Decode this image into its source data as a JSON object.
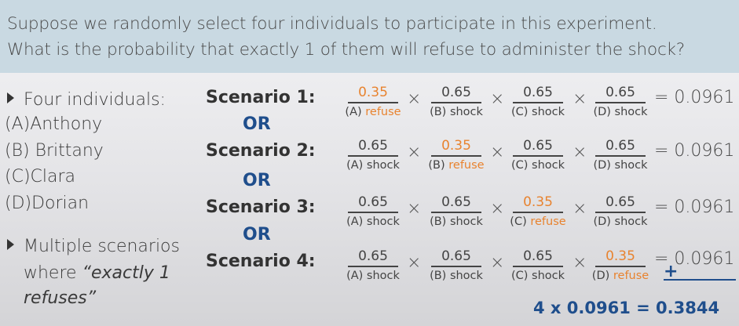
{
  "question": {
    "line1": "Suppose we randomly select four individuals to participate in this experiment.",
    "line2": "What is the probability that exactly 1 of them will refuse to administer the shock?"
  },
  "left": {
    "bullet1": "Four individuals:",
    "people": [
      "(A)Anthony",
      "(B) Brittany",
      "(C)Clara",
      "(D)Dorian"
    ],
    "bullet2_line1": "Multiple scenarios",
    "bullet2_line2_prefix": "where ",
    "bullet2_line2_italic": "“exactly 1",
    "bullet2_line3_italic": "refuses”"
  },
  "or_label": "OR",
  "times_symbol": "×",
  "scenarios": [
    {
      "label": "Scenario 1:",
      "terms": [
        {
          "num": "0.35",
          "den_letter": "(A)",
          "den_word": "refuse",
          "refuse": true
        },
        {
          "num": "0.65",
          "den_letter": "(B)",
          "den_word": "shock",
          "refuse": false
        },
        {
          "num": "0.65",
          "den_letter": "(C)",
          "den_word": "shock",
          "refuse": false
        },
        {
          "num": "0.65",
          "den_letter": "(D)",
          "den_word": "shock",
          "refuse": false
        }
      ],
      "result": "= 0.0961"
    },
    {
      "label": "Scenario 2:",
      "terms": [
        {
          "num": "0.65",
          "den_letter": "(A)",
          "den_word": "shock",
          "refuse": false
        },
        {
          "num": "0.35",
          "den_letter": "(B)",
          "den_word": "refuse",
          "refuse": true
        },
        {
          "num": "0.65",
          "den_letter": "(C)",
          "den_word": "shock",
          "refuse": false
        },
        {
          "num": "0.65",
          "den_letter": "(D)",
          "den_word": "shock",
          "refuse": false
        }
      ],
      "result": "= 0.0961"
    },
    {
      "label": "Scenario 3:",
      "terms": [
        {
          "num": "0.65",
          "den_letter": "(A)",
          "den_word": "shock",
          "refuse": false
        },
        {
          "num": "0.65",
          "den_letter": "(B)",
          "den_word": "shock",
          "refuse": false
        },
        {
          "num": "0.35",
          "den_letter": "(C)",
          "den_word": "refuse",
          "refuse": true
        },
        {
          "num": "0.65",
          "den_letter": "(D)",
          "den_word": "shock",
          "refuse": false
        }
      ],
      "result": "= 0.0961"
    },
    {
      "label": "Scenario 4:",
      "terms": [
        {
          "num": "0.65",
          "den_letter": "(A)",
          "den_word": "shock",
          "refuse": false
        },
        {
          "num": "0.65",
          "den_letter": "(B)",
          "den_word": "shock",
          "refuse": false
        },
        {
          "num": "0.65",
          "den_letter": "(C)",
          "den_word": "shock",
          "refuse": false
        },
        {
          "num": "0.35",
          "den_letter": "(D)",
          "den_word": "refuse",
          "refuse": true
        }
      ],
      "result": "= 0.0961"
    }
  ],
  "sum": {
    "plus": "+",
    "total": "4 x 0.0961  = 0.3844"
  },
  "colors": {
    "banner_bg": "#c9d9e2",
    "refuse_orange": "#e8832f",
    "accent_blue": "#1f4e8c"
  }
}
